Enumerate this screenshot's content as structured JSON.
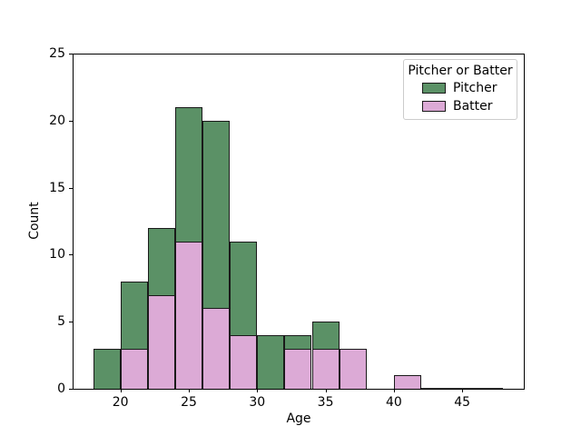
{
  "chart_data": {
    "type": "bar",
    "subtype": "layered-histogram",
    "title": "",
    "xlabel": "Age",
    "ylabel": "Count",
    "xlim": [
      16.5,
      49.5
    ],
    "ylim": [
      0,
      25
    ],
    "xticks": [
      20,
      25,
      30,
      35,
      40,
      45
    ],
    "yticks": [
      0,
      5,
      10,
      15,
      20,
      25
    ],
    "bin_width": 2,
    "grid": false,
    "legend": {
      "title": "Pitcher or Batter",
      "position": "upper right",
      "entries": [
        {
          "label": "Pitcher",
          "color": "#5b9166"
        },
        {
          "label": "Batter",
          "color": "#dcaad6"
        }
      ]
    },
    "series": [
      {
        "name": "Pitcher",
        "color": "#5b9166",
        "edge_color": "#1a1a1a",
        "bins": [
          {
            "start": 18,
            "end": 20,
            "count": 3
          },
          {
            "start": 20,
            "end": 22,
            "count": 8
          },
          {
            "start": 22,
            "end": 24,
            "count": 12
          },
          {
            "start": 24,
            "end": 26,
            "count": 21
          },
          {
            "start": 26,
            "end": 28,
            "count": 20
          },
          {
            "start": 28,
            "end": 30,
            "count": 11
          },
          {
            "start": 30,
            "end": 32,
            "count": 4
          },
          {
            "start": 32,
            "end": 34,
            "count": 4
          },
          {
            "start": 34,
            "end": 36,
            "count": 5
          }
        ]
      },
      {
        "name": "Batter",
        "color": "#dcaad6",
        "edge_color": "#1a1a1a",
        "bins": [
          {
            "start": 20,
            "end": 22,
            "count": 3
          },
          {
            "start": 22,
            "end": 24,
            "count": 7
          },
          {
            "start": 24,
            "end": 26,
            "count": 11
          },
          {
            "start": 26,
            "end": 28,
            "count": 6
          },
          {
            "start": 28,
            "end": 30,
            "count": 4
          },
          {
            "start": 32,
            "end": 34,
            "count": 3
          },
          {
            "start": 34,
            "end": 36,
            "count": 3
          },
          {
            "start": 36,
            "end": 38,
            "count": 3
          },
          {
            "start": 40,
            "end": 42,
            "count": 1
          }
        ],
        "zero_line": {
          "start": 42,
          "end": 48
        }
      }
    ]
  }
}
